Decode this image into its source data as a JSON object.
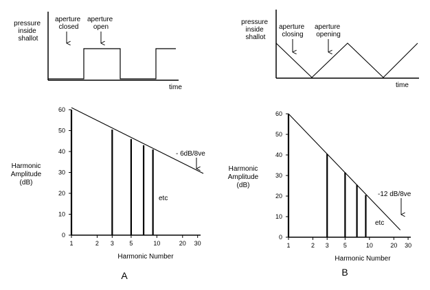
{
  "waveforms": [
    {
      "id": "A",
      "ylabel_lines": [
        "pressure",
        "inside",
        "shallot"
      ],
      "xlabel": "time",
      "shape": "square",
      "annotations": [
        {
          "lines": [
            "aperture",
            "closed"
          ]
        },
        {
          "lines": [
            "aperture",
            "open"
          ]
        }
      ]
    },
    {
      "id": "B",
      "ylabel_lines": [
        "pressure",
        "inside",
        "shallot"
      ],
      "xlabel": "time",
      "shape": "triangle",
      "annotations": [
        {
          "lines": [
            "aperture",
            "closing"
          ]
        },
        {
          "lines": [
            "aperture",
            "opening"
          ]
        }
      ]
    }
  ],
  "chart_data": [
    {
      "type": "bar",
      "panel_label": "A",
      "xlabel": "Harmonic Number",
      "ylabel_lines": [
        "Harmonic",
        "Amplitude",
        "(dB)"
      ],
      "x_scale": "log",
      "xlim": [
        1,
        35
      ],
      "ylim": [
        0,
        60
      ],
      "x_ticks": [
        1,
        2,
        3,
        5,
        10,
        20,
        30
      ],
      "y_ticks": [
        0,
        10,
        20,
        30,
        40,
        50,
        60
      ],
      "harmonics": [
        1,
        3,
        5,
        7,
        9
      ],
      "values": [
        60,
        50.5,
        46,
        43,
        41
      ],
      "slope_line": {
        "x": [
          1,
          35
        ],
        "y": [
          61,
          29.5
        ]
      },
      "slope_label": "- 6dB/8ve",
      "etc_label": "etc"
    },
    {
      "type": "bar",
      "panel_label": "B",
      "xlabel": "Harmonic Number",
      "ylabel_lines": [
        "Harmonic",
        "Amplitude",
        "(dB)"
      ],
      "x_scale": "log",
      "xlim": [
        1,
        35
      ],
      "ylim": [
        0,
        60
      ],
      "x_ticks": [
        1,
        2,
        3,
        5,
        10,
        20,
        30
      ],
      "y_ticks": [
        0,
        10,
        20,
        30,
        40,
        50,
        60
      ],
      "harmonics": [
        1,
        3,
        5,
        7,
        9
      ],
      "values": [
        60,
        40.5,
        31.5,
        25.5,
        20.5
      ],
      "slope_line": {
        "x": [
          1,
          24
        ],
        "y": [
          60,
          3.5
        ]
      },
      "slope_label": "-12 dB/8ve",
      "etc_label": "etc"
    }
  ]
}
